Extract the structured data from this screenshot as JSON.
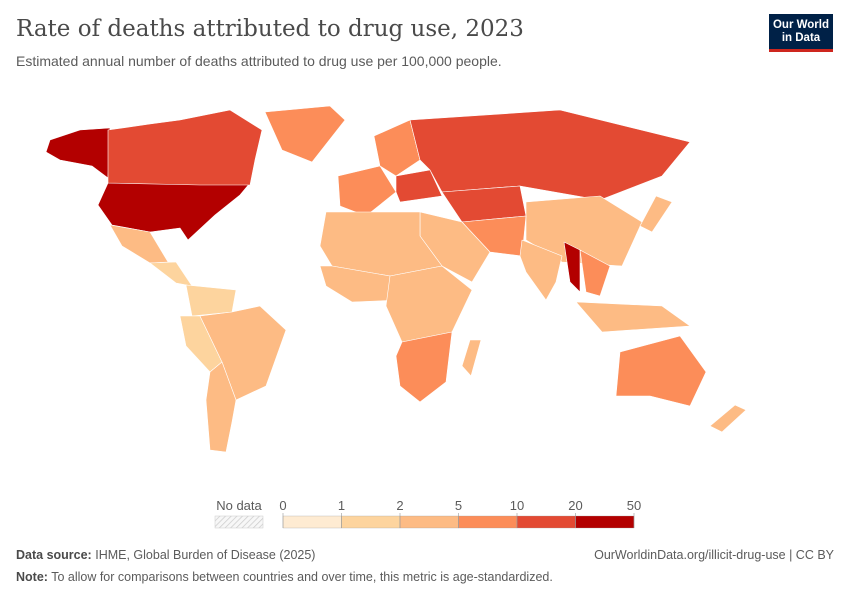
{
  "header": {
    "title": "Rate of deaths attributed to drug use, 2023",
    "subtitle": "Estimated annual number of deaths attributed to drug use per 100,000 people.",
    "logo_text": "Our World in Data"
  },
  "chart_data": {
    "type": "choropleth-map",
    "year": 2023,
    "unit": "deaths per 100,000 people",
    "legend": {
      "no_data_label": "No data",
      "bins": [
        0,
        1,
        2,
        5,
        10,
        20,
        50
      ],
      "bin_labels": [
        "0",
        "1",
        "2",
        "5",
        "10",
        "20",
        "50"
      ],
      "colors": [
        "#feebd2",
        "#fdd49e",
        "#fdbb84",
        "#fc8d59",
        "#e34a33",
        "#b30000"
      ],
      "no_data_color": "#eeeeee"
    },
    "regions": [
      {
        "name": "Alaska (United States)",
        "value": 25
      },
      {
        "name": "United States",
        "value": 30
      },
      {
        "name": "Canada",
        "value": 12
      },
      {
        "name": "Greenland",
        "value": 6
      },
      {
        "name": "Mexico",
        "value": 2.5
      },
      {
        "name": "Central America",
        "value": 1.5
      },
      {
        "name": "Northern South America",
        "value": 1.5
      },
      {
        "name": "Andean countries",
        "value": 1.2
      },
      {
        "name": "Brazil",
        "value": 2.5
      },
      {
        "name": "Southern Cone",
        "value": 4
      },
      {
        "name": "Western Europe",
        "value": 6
      },
      {
        "name": "Scandinavia",
        "value": 8
      },
      {
        "name": "Eastern Europe",
        "value": 15
      },
      {
        "name": "Russia",
        "value": 13
      },
      {
        "name": "Central Asia",
        "value": 12
      },
      {
        "name": "China",
        "value": 3
      },
      {
        "name": "Middle East",
        "value": 2.5
      },
      {
        "name": "Iran, Afghanistan, Pakistan",
        "value": 8
      },
      {
        "name": "India",
        "value": 2.5
      },
      {
        "name": "Myanmar",
        "value": 22
      },
      {
        "name": "Southeast Asia",
        "value": 7
      },
      {
        "name": "Indonesia",
        "value": 2.5
      },
      {
        "name": "Japan",
        "value": 4
      },
      {
        "name": "North Africa",
        "value": 2
      },
      {
        "name": "West Africa",
        "value": 3
      },
      {
        "name": "Central and East Africa",
        "value": 3
      },
      {
        "name": "Southern Africa",
        "value": 7
      },
      {
        "name": "Madagascar",
        "value": 2.5
      },
      {
        "name": "Australia",
        "value": 7
      },
      {
        "name": "New Zealand",
        "value": 4
      }
    ]
  },
  "footer": {
    "source_label": "Data source:",
    "source": "IHME, Global Burden of Disease (2025)",
    "url": "OurWorldinData.org/illicit-drug-use | CC BY",
    "note_label": "Note:",
    "note": "To allow for comparisons between countries and over time, this metric is age-standardized."
  }
}
